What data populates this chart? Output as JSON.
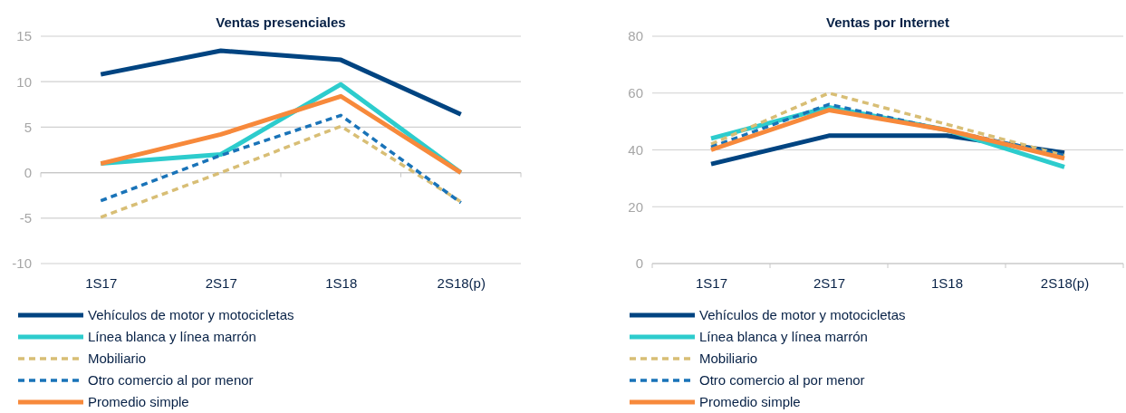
{
  "chart_data": [
    {
      "type": "line",
      "title": "Ventas presenciales",
      "categories": [
        "1S17",
        "2S17",
        "1S18",
        "2S18(p)"
      ],
      "ylim": [
        -10,
        15
      ],
      "yticks": [
        -10,
        -5,
        0,
        5,
        10,
        15
      ],
      "grid": "y",
      "legend": "bottom",
      "series": [
        {
          "name": "Vehículos de motor y motocicletas",
          "color": "#004481",
          "line_style": "solid",
          "values": [
            10.8,
            13.4,
            12.4,
            6.4
          ]
        },
        {
          "name": "Línea blanca y línea marrón",
          "color": "#2dcccd",
          "line_style": "solid",
          "values": [
            1.0,
            2.0,
            9.7,
            0.0
          ]
        },
        {
          "name": "Mobiliario",
          "color": "#d8be75",
          "line_style": "dashed",
          "values": [
            -4.9,
            0.0,
            5.1,
            -3.2
          ]
        },
        {
          "name": "Otro comercio al por menor",
          "color": "#1973b8",
          "line_style": "dashed",
          "values": [
            -3.1,
            1.9,
            6.3,
            -3.3
          ]
        },
        {
          "name": "Promedio simple",
          "color": "#f7893b",
          "line_style": "solid",
          "values": [
            1.0,
            4.2,
            8.4,
            0.0
          ]
        }
      ]
    },
    {
      "type": "line",
      "title": "Ventas por Internet",
      "categories": [
        "1S17",
        "2S17",
        "1S18",
        "2S18(p)"
      ],
      "ylim": [
        0,
        80
      ],
      "yticks": [
        0,
        20,
        40,
        60,
        80
      ],
      "grid": "y",
      "legend": "bottom",
      "series": [
        {
          "name": "Vehículos de motor y motocicletas",
          "color": "#004481",
          "line_style": "solid",
          "values": [
            35,
            45,
            45,
            39
          ]
        },
        {
          "name": "Línea blanca y línea marrón",
          "color": "#2dcccd",
          "line_style": "solid",
          "values": [
            44,
            55,
            47,
            34
          ]
        },
        {
          "name": "Mobiliario",
          "color": "#d8be75",
          "line_style": "dashed",
          "values": [
            42,
            60,
            49,
            38
          ]
        },
        {
          "name": "Otro comercio al por menor",
          "color": "#1973b8",
          "line_style": "dashed",
          "values": [
            41,
            56,
            47,
            38
          ]
        },
        {
          "name": "Promedio simple",
          "color": "#f7893b",
          "line_style": "solid",
          "values": [
            40,
            54,
            47,
            37
          ]
        }
      ]
    }
  ]
}
